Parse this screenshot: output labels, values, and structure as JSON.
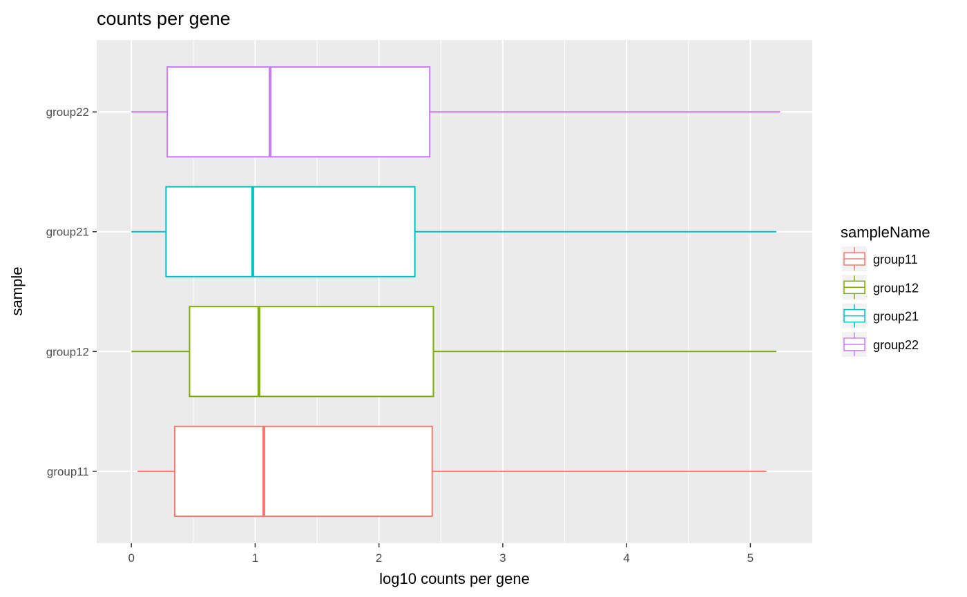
{
  "chart_data": {
    "type": "boxplot",
    "orientation": "horizontal",
    "title": "counts per gene",
    "xlabel": "log10 counts per gene",
    "ylabel": "sample",
    "xlim": [
      -0.28,
      5.5
    ],
    "x_ticks": [
      0,
      1,
      2,
      3,
      4,
      5
    ],
    "x_tick_labels": [
      "0",
      "1",
      "2",
      "3",
      "4",
      "5"
    ],
    "categories": [
      "group11",
      "group12",
      "group21",
      "group22"
    ],
    "legend": {
      "title": "sampleName",
      "placement": "right",
      "entries": [
        "group11",
        "group12",
        "group21",
        "group22"
      ]
    },
    "grid": true,
    "series": [
      {
        "name": "group11",
        "color": "#F8766D",
        "whisker_low": 0.05,
        "q1": 0.35,
        "median": 1.07,
        "q3": 2.43,
        "whisker_high": 5.13
      },
      {
        "name": "group12",
        "color": "#7CAE00",
        "whisker_low": 0.0,
        "q1": 0.47,
        "median": 1.03,
        "q3": 2.44,
        "whisker_high": 5.21
      },
      {
        "name": "group21",
        "color": "#00BFC4",
        "whisker_low": 0.0,
        "q1": 0.28,
        "median": 0.98,
        "q3": 2.29,
        "whisker_high": 5.21
      },
      {
        "name": "group22",
        "color": "#C77CFF",
        "whisker_low": 0.0,
        "q1": 0.29,
        "median": 1.12,
        "q3": 2.41,
        "whisker_high": 5.24
      }
    ]
  }
}
